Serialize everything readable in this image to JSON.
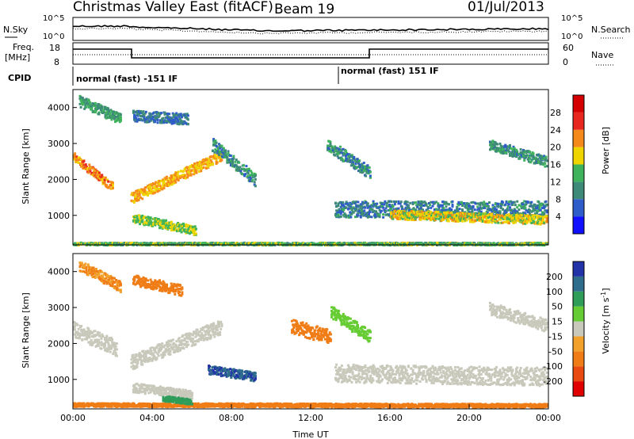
{
  "header": {
    "title": "Christmas Valley East (fitACF)",
    "beam": "Beam 19",
    "date": "01/Jul/2013"
  },
  "top_panels": {
    "nsky_label": "N.Sky",
    "nsearch_label": "N.Search",
    "nsky_ticks": [
      "10^5",
      "10^0"
    ],
    "nsky_right_ticks": [
      "10^5",
      "10^0"
    ],
    "freq_label": "Freq.",
    "freq_unit": "[MHz]",
    "freq_ticks": [
      "18",
      "8"
    ],
    "nave_label": "Nave",
    "nave_ticks": [
      "60",
      "0"
    ],
    "cpid_label": "CPID",
    "cpid_segments": [
      {
        "label": "normal (fast) -151 IF",
        "start_h": 0,
        "end_h": 13.2
      },
      {
        "label": "normal (fast) 151 IF",
        "start_h": 13.2,
        "end_h": 24
      }
    ]
  },
  "chart_data": [
    {
      "type": "heatmap",
      "name": "power-panel",
      "ylabel": "Slant Range [km]",
      "xlim": [
        0,
        24
      ],
      "ylim": [
        180,
        4500
      ],
      "yticks": [
        "1000",
        "2000",
        "3000",
        "4000"
      ],
      "colorbar": {
        "label": "Power [dB]",
        "ticks": [
          "4",
          "8",
          "12",
          "16",
          "20",
          "24",
          "28"
        ],
        "colors": [
          "#1010ff",
          "#2e5cc8",
          "#3d8a78",
          "#3fb35c",
          "#f0d400",
          "#f58a1a",
          "#e8281e",
          "#d40000"
        ]
      },
      "bands": [
        {
          "t0": 0.0,
          "r0": 2650,
          "t1": 2.0,
          "r1": 1800,
          "w": 250,
          "v": 24
        },
        {
          "t0": 2.9,
          "r0": 1500,
          "t1": 7.5,
          "r1": 2700,
          "w": 300,
          "v": 22
        },
        {
          "t0": 0.3,
          "r0": 4200,
          "t1": 2.4,
          "r1": 3700,
          "w": 300,
          "v": 14
        },
        {
          "t0": 3.0,
          "r0": 3800,
          "t1": 5.8,
          "r1": 3700,
          "w": 300,
          "v": 10
        },
        {
          "t0": 7.0,
          "r0": 3000,
          "t1": 9.2,
          "r1": 2000,
          "w": 350,
          "v": 12
        },
        {
          "t0": 12.8,
          "r0": 3000,
          "t1": 15.0,
          "r1": 2200,
          "w": 350,
          "v": 12
        },
        {
          "t0": 13.2,
          "r0": 1200,
          "t1": 24.0,
          "r1": 1200,
          "w": 450,
          "v": 11
        },
        {
          "t0": 16.0,
          "r0": 1050,
          "t1": 24.0,
          "r1": 900,
          "w": 250,
          "v": 20
        },
        {
          "t0": 21.0,
          "r0": 3000,
          "t1": 24.0,
          "r1": 2500,
          "w": 300,
          "v": 13
        },
        {
          "t0": 3.0,
          "r0": 950,
          "t1": 6.2,
          "r1": 600,
          "w": 250,
          "v": 18
        },
        {
          "t0": 0.0,
          "r0": 230,
          "t1": 24.0,
          "r1": 230,
          "w": 80,
          "v": 16
        }
      ]
    },
    {
      "type": "heatmap",
      "name": "velocity-panel",
      "xlabel": "Time UT",
      "ylabel": "Slant Range [km]",
      "xlim": [
        0,
        24
      ],
      "ylim": [
        180,
        4500
      ],
      "yticks": [
        "1000",
        "2000",
        "3000",
        "4000"
      ],
      "xticks": [
        "00:00",
        "04:00",
        "08:00",
        "12:00",
        "16:00",
        "20:00",
        "00:00"
      ],
      "colorbar": {
        "label": "Velocity [m s^-1]",
        "ticks": [
          "200",
          "100",
          "50",
          "15",
          "-15",
          "-50",
          "-100",
          "-200"
        ],
        "colors": [
          "#2233a8",
          "#2e6e8c",
          "#2f9d5a",
          "#66cc33",
          "#c8c8bb",
          "#f2a22b",
          "#f07c16",
          "#e84a10",
          "#e00000"
        ]
      },
      "bands": [
        {
          "t0": 0.0,
          "r0": 2400,
          "t1": 2.2,
          "r1": 1900,
          "w": 450,
          "v": 0
        },
        {
          "t0": 2.9,
          "r0": 1500,
          "t1": 7.5,
          "r1": 2500,
          "w": 400,
          "v": 0
        },
        {
          "t0": 0.3,
          "r0": 4200,
          "t1": 2.4,
          "r1": 3600,
          "w": 300,
          "v": -30
        },
        {
          "t0": 3.0,
          "r0": 3800,
          "t1": 5.5,
          "r1": 3500,
          "w": 300,
          "v": -40
        },
        {
          "t0": 6.8,
          "r0": 1300,
          "t1": 9.2,
          "r1": 1100,
          "w": 250,
          "v": 150
        },
        {
          "t0": 13.2,
          "r0": 1200,
          "t1": 24.0,
          "r1": 1100,
          "w": 500,
          "v": 0
        },
        {
          "t0": 21.0,
          "r0": 3000,
          "t1": 24.0,
          "r1": 2500,
          "w": 350,
          "v": 0
        },
        {
          "t0": 11.0,
          "r0": 2500,
          "t1": 13.0,
          "r1": 2200,
          "w": 400,
          "v": -40
        },
        {
          "t0": 13.0,
          "r0": 2900,
          "t1": 15.0,
          "r1": 2200,
          "w": 350,
          "v": 20
        },
        {
          "t0": 0.0,
          "r0": 320,
          "t1": 24.0,
          "r1": 300,
          "w": 100,
          "v": -40
        },
        {
          "t0": 3.0,
          "r0": 800,
          "t1": 6.0,
          "r1": 600,
          "w": 250,
          "v": 0
        },
        {
          "t0": 4.5,
          "r0": 500,
          "t1": 6.0,
          "r1": 400,
          "w": 150,
          "v": 40
        }
      ]
    }
  ]
}
